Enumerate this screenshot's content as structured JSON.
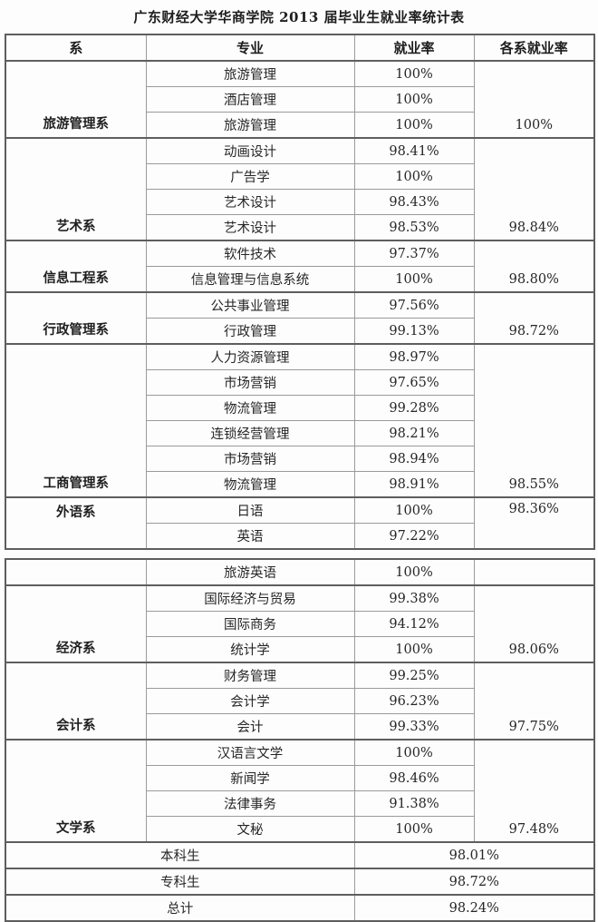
{
  "title": "广东财经大学华商学院 2013 届毕业生就业率统计表",
  "columns": {
    "dept": "系",
    "major": "专业",
    "rate": "就业率",
    "dept_rate": "各系就业率"
  },
  "table1": {
    "sections": [
      {
        "dept": "旅游管理系",
        "dept_rate": "100%",
        "majors": [
          {
            "name": "旅游管理",
            "rate": "100%"
          },
          {
            "name": "酒店管理",
            "rate": "100%"
          },
          {
            "name": "旅游管理",
            "rate": "100%"
          }
        ]
      },
      {
        "dept": "艺术系",
        "dept_rate": "98.84%",
        "majors": [
          {
            "name": "动画设计",
            "rate": "98.41%"
          },
          {
            "name": "广告学",
            "rate": "100%"
          },
          {
            "name": "艺术设计",
            "rate": "98.43%"
          },
          {
            "name": "艺术设计",
            "rate": "98.53%"
          }
        ]
      },
      {
        "dept": "信息工程系",
        "dept_rate": "98.80%",
        "majors": [
          {
            "name": "软件技术",
            "rate": "97.37%"
          },
          {
            "name": "信息管理与信息系统",
            "rate": "100%"
          }
        ]
      },
      {
        "dept": "行政管理系",
        "dept_rate": "98.72%",
        "majors": [
          {
            "name": "公共事业管理",
            "rate": "97.56%"
          },
          {
            "name": "行政管理",
            "rate": "99.13%"
          }
        ]
      },
      {
        "dept": "工商管理系",
        "dept_rate": "98.55%",
        "majors": [
          {
            "name": "人力资源管理",
            "rate": "98.97%"
          },
          {
            "name": "市场营销",
            "rate": "97.65%"
          },
          {
            "name": "物流管理",
            "rate": "99.28%"
          },
          {
            "name": "连锁经营管理",
            "rate": "98.21%"
          },
          {
            "name": "市场营销",
            "rate": "98.94%"
          },
          {
            "name": "物流管理",
            "rate": "98.91%"
          }
        ]
      },
      {
        "dept": "外语系",
        "dept_rate": "98.36%",
        "majors": [
          {
            "name": "日语",
            "rate": "100%"
          },
          {
            "name": "英语",
            "rate": "97.22%"
          }
        ]
      }
    ]
  },
  "table2": {
    "sections": [
      {
        "dept": "",
        "dept_rate": "",
        "majors": [
          {
            "name": "旅游英语",
            "rate": "100%"
          }
        ]
      },
      {
        "dept": "经济系",
        "dept_rate": "98.06%",
        "majors": [
          {
            "name": "国际经济与贸易",
            "rate": "99.38%"
          },
          {
            "name": "国际商务",
            "rate": "94.12%"
          },
          {
            "name": "统计学",
            "rate": "100%"
          }
        ]
      },
      {
        "dept": "会计系",
        "dept_rate": "97.75%",
        "majors": [
          {
            "name": "财务管理",
            "rate": "99.25%"
          },
          {
            "name": "会计学",
            "rate": "96.23%"
          },
          {
            "name": "会计",
            "rate": "99.33%"
          }
        ]
      },
      {
        "dept": "文学系",
        "dept_rate": "97.48%",
        "majors": [
          {
            "name": "汉语言文学",
            "rate": "100%"
          },
          {
            "name": "新闻学",
            "rate": "98.46%"
          },
          {
            "name": "法律事务",
            "rate": "91.38%"
          },
          {
            "name": "文秘",
            "rate": "100%"
          }
        ]
      }
    ],
    "summary": [
      {
        "label": "本科生",
        "rate": "98.01%"
      },
      {
        "label": "专科生",
        "rate": "98.72%"
      },
      {
        "label": "总计",
        "rate": "98.24%"
      }
    ]
  }
}
